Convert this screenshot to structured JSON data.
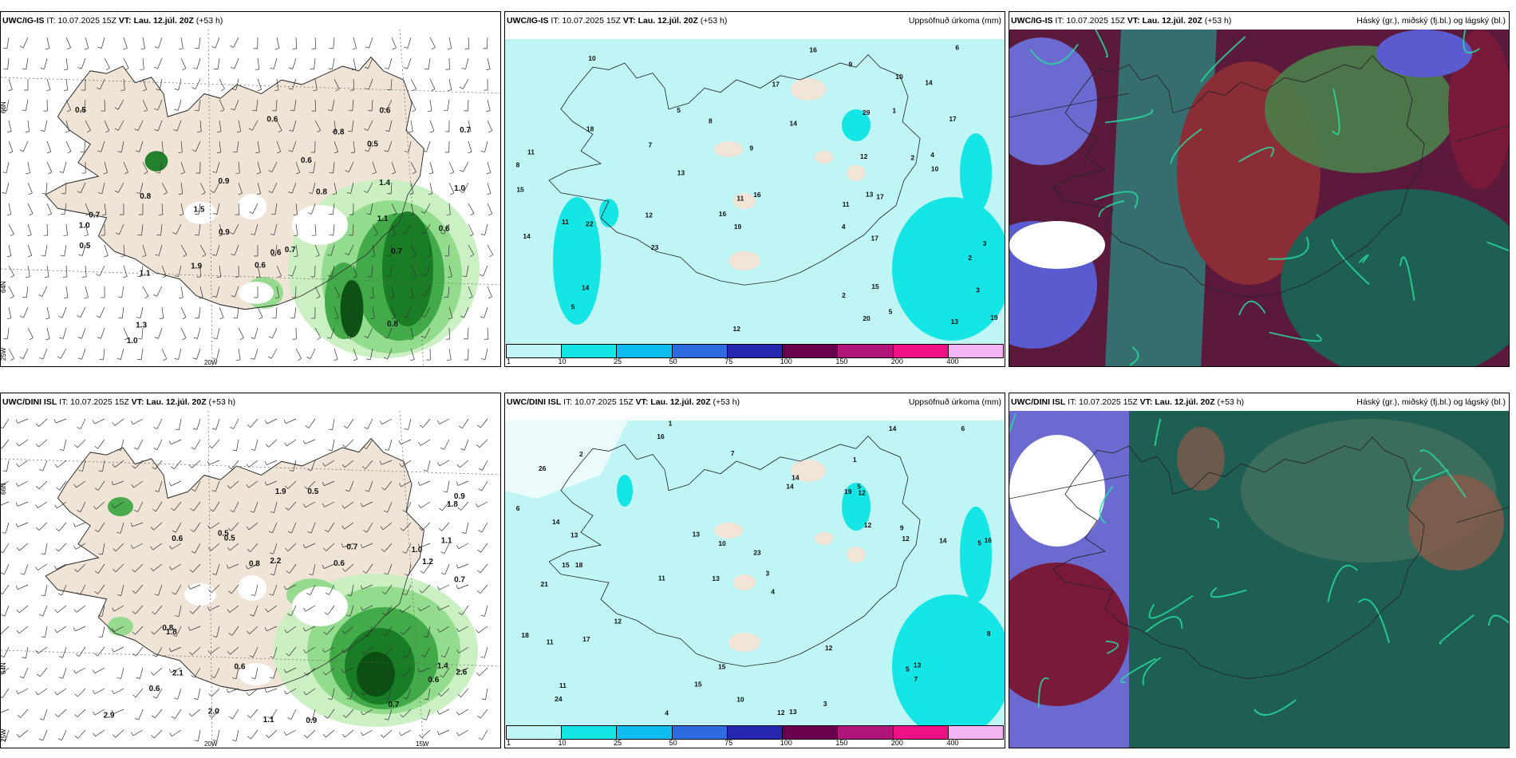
{
  "rows": [
    {
      "wind": {
        "model": "UWC/IG-IS",
        "it": "IT: 10.07.2025 15Z",
        "vt_label": "VT:",
        "vt": "Lau. 12.júl. 20Z",
        "lead": "(+53 h)"
      },
      "precip": {
        "model": "UWC/IG-IS",
        "it": "IT: 10.07.2025 15Z",
        "vt_label": "VT:",
        "vt": "Lau. 12.júl. 20Z",
        "lead": "(+53 h)",
        "right": "Uppsöfnuð úrkoma (mm)"
      },
      "cloud": {
        "model": "UWC/IG-IS",
        "it": "IT: 10.07.2025 15Z",
        "vt_label": "VT:",
        "vt": "Lau. 12.júl. 20Z",
        "lead": "(+53 h)",
        "right": "Háský (gr.), miðský (fj.bl.) og lágský (bl.)"
      }
    },
    {
      "wind": {
        "model": "UWC/DINI ISL",
        "it": "IT: 10.07.2025 15Z",
        "vt_label": "VT:",
        "vt": "Lau. 12.júl. 20Z",
        "lead": "(+53 h)"
      },
      "precip": {
        "model": "UWC/DINI ISL",
        "it": "IT: 10.07.2025 15Z",
        "vt_label": "VT:",
        "vt": "Lau. 12.júl. 20Z",
        "lead": "(+53 h)",
        "right": "Uppsöfnuð úrkoma (mm)"
      },
      "cloud": {
        "model": "UWC/DINI ISL",
        "it": "IT: 10.07.2025 15Z",
        "vt_label": "VT:",
        "vt": "Lau. 12.júl. 20Z",
        "lead": "(+53 h)",
        "right": "Háský (gr.), miðský (fj.bl.) og lágský (bl.)"
      }
    }
  ],
  "axis_labels": {
    "lat66": "66N",
    "lat64": "64N",
    "lon25": "25W",
    "lon20": "20W",
    "lon15": "15W"
  },
  "colorbar": {
    "ticks": [
      "1",
      "10",
      "25",
      "50",
      "75",
      "100",
      "150",
      "200",
      "400"
    ],
    "colors": [
      "#bff5f5",
      "#14e6e6",
      "#0ebdf0",
      "#2d6be0",
      "#2626b0",
      "#6b0050",
      "#b0157a",
      "#ef0f87",
      "#f4b4f4"
    ]
  },
  "wind_values_top": [
    "0.5",
    "1.1",
    "0.5",
    "0.6",
    "1.3",
    "0.8",
    "1.4",
    "0.5",
    "1.1",
    "1.0",
    "0.8",
    "0.7",
    "0.8",
    "0.9",
    "1.0",
    "0.8",
    "0.7",
    "0.7",
    "0.6",
    "0.6",
    "1.9",
    "0.6",
    "0.6",
    "1.0",
    "0.9",
    "0.7",
    "1.5",
    "0.6"
  ],
  "wind_values_bottom": [
    "0.9",
    "0.5",
    "1.0",
    "2.6",
    "2.1",
    "2.9",
    "0.7",
    "0.5",
    "1.4",
    "0.6",
    "0.7",
    "0.9",
    "0.8",
    "0.6",
    "1.1",
    "0.6",
    "1.9",
    "1.8",
    "2.2",
    "1.1",
    "1.8",
    "0.8",
    "0.6",
    "0.7",
    "0.5",
    "2.0",
    "1.2",
    "0.6"
  ],
  "precip_values_top": [
    "4",
    "3",
    "2",
    "2",
    "2",
    "1",
    "4",
    "9",
    "3",
    "5",
    "13",
    "11",
    "14",
    "17",
    "23",
    "13",
    "14",
    "11",
    "10",
    "8",
    "19",
    "15",
    "12",
    "9",
    "10",
    "14",
    "18",
    "29",
    "19",
    "22",
    "17",
    "16",
    "11",
    "15",
    "13",
    "5",
    "14",
    "16",
    "17",
    "20",
    "16",
    "12",
    "17",
    "12",
    "8",
    "5",
    "6",
    "7",
    "11",
    "10"
  ],
  "precip_values_bottom": [
    "1",
    "1",
    "5",
    "13",
    "4",
    "18",
    "26",
    "19",
    "21",
    "14",
    "23",
    "24",
    "16",
    "11",
    "12",
    "13",
    "15",
    "14",
    "12",
    "12",
    "13",
    "15",
    "16",
    "14",
    "18",
    "14",
    "10",
    "12",
    "13",
    "11",
    "5",
    "14",
    "17",
    "13",
    "12",
    "8",
    "9",
    "15",
    "6",
    "7",
    "11",
    "4",
    "3",
    "2",
    "10",
    "12",
    "7",
    "5",
    "6",
    "3"
  ]
}
